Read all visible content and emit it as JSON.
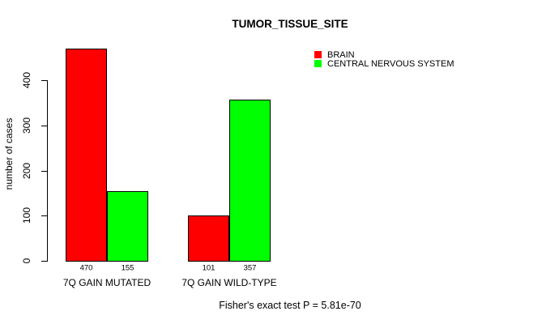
{
  "chart_data": {
    "type": "bar",
    "title": "TUMOR_TISSUE_SITE",
    "ylabel": "number of cases",
    "xlabel": "",
    "categories": [
      "7Q GAIN MUTATED",
      "7Q GAIN WILD-TYPE"
    ],
    "series": [
      {
        "name": "BRAIN",
        "color": "#ff0000",
        "values": [
          470,
          101
        ]
      },
      {
        "name": "CENTRAL NERVOUS SYSTEM",
        "color": "#00ff00",
        "values": [
          155,
          357
        ]
      }
    ],
    "yticks": [
      0,
      100,
      200,
      300,
      400
    ],
    "ylim": [
      0,
      473
    ],
    "grid": false,
    "legend_position": "top-right",
    "bar_value_labels_shown": true,
    "annotation": "Fisher's exact test P = 5.81e-70"
  }
}
